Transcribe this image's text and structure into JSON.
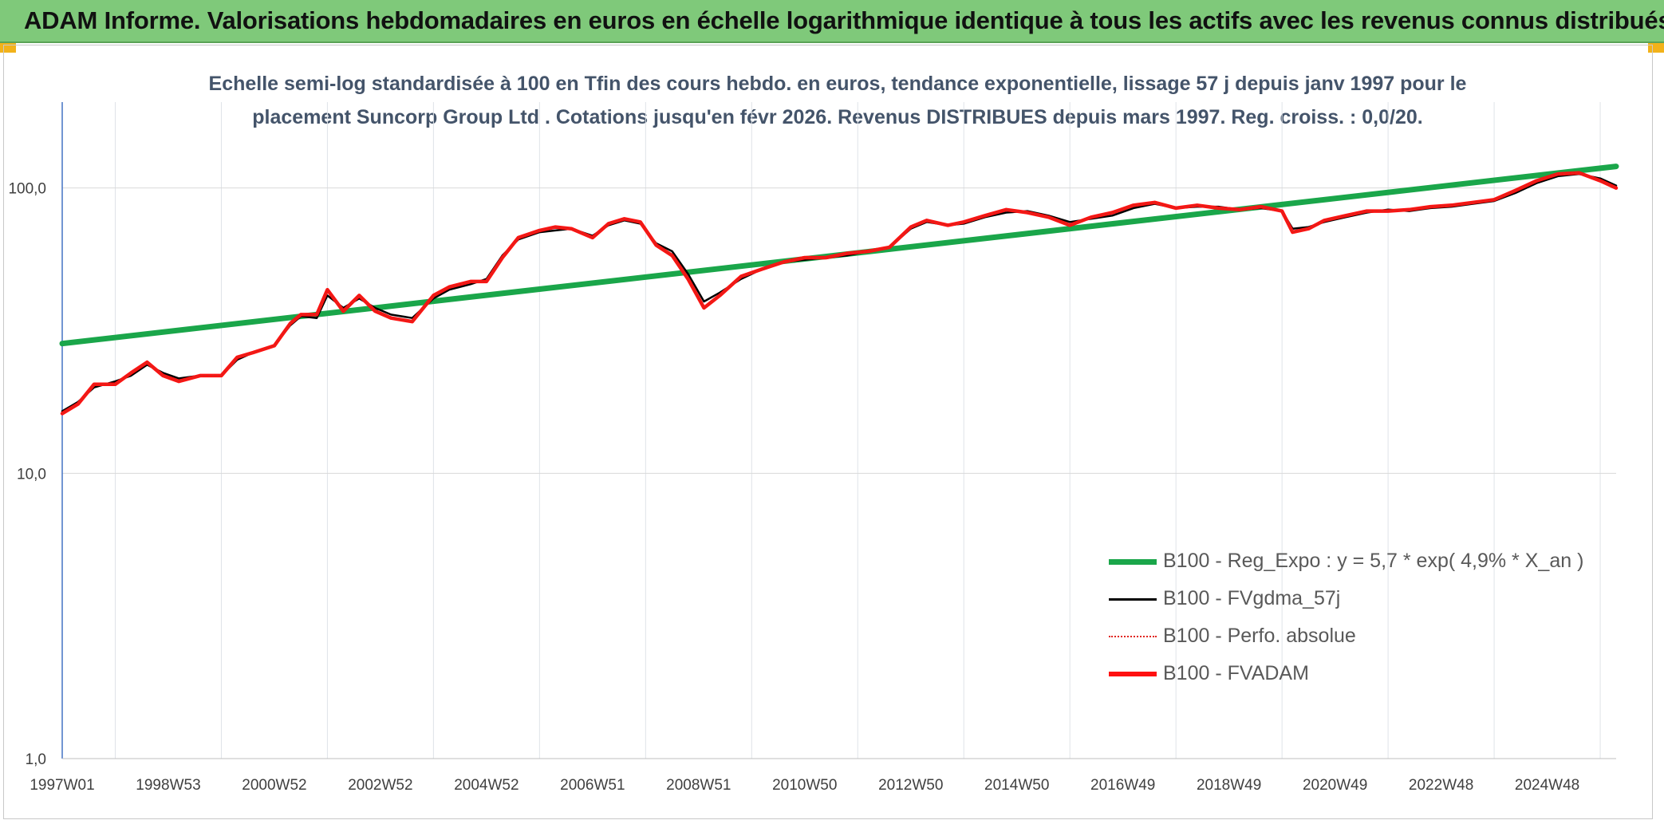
{
  "banner": {
    "title": "ADAM Informe. Valorisations hebdomadaires en euros en échelle logarithmique identique à tous les actifs avec les revenus connus distribués",
    "color": "#7fc97a"
  },
  "chart_data": {
    "type": "line",
    "title_line1": "Echelle semi-log standardisée à 100 en Tfin des cours hebdo. en euros, tendance exponentielle, lissage 57 j depuis janv 1997 pour le",
    "title_line2": "placement Suncorp Group Ltd . Cotations jusqu'en févr 2026. Revenus DISTRIBUES depuis mars 1997. Reg. croiss. : 0,0/20.",
    "y_scale": "log",
    "ylim": [
      1,
      200
    ],
    "xlim": [
      1997.0,
      2026.3
    ],
    "grid": true,
    "legend_position": "bottom-right",
    "y_ticks": [
      {
        "value": 1,
        "label": "1,0"
      },
      {
        "value": 10,
        "label": "10,0"
      },
      {
        "value": 100,
        "label": "100,0"
      }
    ],
    "x_ticks": [
      {
        "value": 1997.0,
        "label": "1997W01"
      },
      {
        "value": 1999.0,
        "label": "1998W53"
      },
      {
        "value": 2001.0,
        "label": "2000W52"
      },
      {
        "value": 2003.0,
        "label": "2002W52"
      },
      {
        "value": 2005.0,
        "label": "2004W52"
      },
      {
        "value": 2007.0,
        "label": "2006W51"
      },
      {
        "value": 2009.0,
        "label": "2008W51"
      },
      {
        "value": 2011.0,
        "label": "2010W50"
      },
      {
        "value": 2013.0,
        "label": "2012W50"
      },
      {
        "value": 2015.0,
        "label": "2014W50"
      },
      {
        "value": 2017.0,
        "label": "2016W49"
      },
      {
        "value": 2019.0,
        "label": "2018W49"
      },
      {
        "value": 2021.0,
        "label": "2020W49"
      },
      {
        "value": 2023.0,
        "label": "2022W48"
      },
      {
        "value": 2025.0,
        "label": "2024W48"
      }
    ],
    "minor_gridlines": [
      1998.0,
      2000.0,
      2002.0,
      2004.0,
      2006.0,
      2008.0,
      2010.0,
      2012.0,
      2014.0,
      2016.0,
      2018.0,
      2020.0,
      2022.0,
      2024.0,
      2026.0
    ],
    "series": [
      {
        "name": "B100 - Reg_Expo : y = 5,7 * exp( 4,9% *  X_an )",
        "color": "#1aa64a",
        "style": "thick",
        "x": [
          1997.0,
          2026.3
        ],
        "y": [
          28.5,
          119
        ]
      },
      {
        "name": "B100 - FVgdma_57j",
        "color": "#000000",
        "style": "thin",
        "x": [
          1997.0,
          1997.3,
          1997.6,
          1998.0,
          1998.3,
          1998.6,
          1998.9,
          1999.2,
          1999.6,
          2000.0,
          2000.3,
          2000.6,
          2001.0,
          2001.3,
          2001.5,
          2001.8,
          2002.0,
          2002.3,
          2002.6,
          2002.9,
          2003.2,
          2003.6,
          2004.0,
          2004.3,
          2004.7,
          2005.0,
          2005.3,
          2005.6,
          2006.0,
          2006.3,
          2006.6,
          2007.0,
          2007.3,
          2007.6,
          2007.9,
          2008.2,
          2008.5,
          2008.8,
          2009.1,
          2009.4,
          2009.8,
          2010.2,
          2010.6,
          2011.0,
          2011.4,
          2011.8,
          2012.2,
          2012.6,
          2013.0,
          2013.3,
          2013.7,
          2014.0,
          2014.4,
          2014.8,
          2015.2,
          2015.6,
          2016.0,
          2016.4,
          2016.8,
          2017.2,
          2017.6,
          2018.0,
          2018.4,
          2018.8,
          2019.2,
          2019.6,
          2020.0,
          2020.2,
          2020.5,
          2020.8,
          2021.2,
          2021.6,
          2022.0,
          2022.4,
          2022.8,
          2023.2,
          2023.6,
          2024.0,
          2024.4,
          2024.8,
          2025.2,
          2025.6,
          2026.0,
          2026.3
        ],
        "y": [
          16.5,
          17.8,
          20,
          21,
          22,
          24,
          22.5,
          21.5,
          22,
          22,
          25,
          26.5,
          28,
          33,
          35.5,
          35,
          42,
          38,
          41,
          38,
          36,
          35,
          41,
          44,
          46,
          48,
          58,
          66,
          70,
          71,
          72,
          68,
          74,
          77,
          75,
          64,
          60,
          50,
          40,
          43,
          48,
          52,
          55,
          56,
          57,
          58,
          60,
          62,
          72,
          76,
          74,
          75,
          79,
          82,
          83,
          80,
          76,
          78,
          80,
          85,
          88,
          85,
          86,
          86,
          84,
          85,
          83,
          72,
          73,
          76,
          79,
          82,
          84,
          83,
          85,
          86,
          88,
          90,
          96,
          104,
          110,
          112,
          108,
          102
        ]
      },
      {
        "name": "B100 - Perfo. absolue",
        "color": "#e0231c",
        "style": "dotted",
        "x": [
          1997.0,
          1997.3,
          1997.6,
          1998.0,
          1998.3,
          1998.6,
          1998.9,
          1999.2,
          1999.6,
          2000.0,
          2000.3,
          2000.6,
          2001.0,
          2001.3,
          2001.5,
          2001.8,
          2002.0,
          2002.3,
          2002.6,
          2002.9,
          2003.2,
          2003.6,
          2004.0,
          2004.3,
          2004.7,
          2005.0,
          2005.3,
          2005.6,
          2006.0,
          2006.3,
          2006.6,
          2007.0,
          2007.3,
          2007.6,
          2007.9,
          2008.2,
          2008.5,
          2008.8,
          2009.1,
          2009.4,
          2009.8,
          2010.2,
          2010.6,
          2011.0,
          2011.4,
          2011.8,
          2012.2,
          2012.6,
          2013.0,
          2013.3,
          2013.7,
          2014.0,
          2014.4,
          2014.8,
          2015.2,
          2015.6,
          2016.0,
          2016.4,
          2016.8,
          2017.2,
          2017.6,
          2018.0,
          2018.4,
          2018.8,
          2019.2,
          2019.6,
          2020.0,
          2020.2,
          2020.5,
          2020.8,
          2021.2,
          2021.6,
          2022.0,
          2022.4,
          2022.8,
          2023.2,
          2023.6,
          2024.0,
          2024.4,
          2024.8,
          2025.2,
          2025.6,
          2026.0,
          2026.3
        ],
        "y": [
          16.2,
          17.5,
          20.5,
          20.5,
          22.5,
          24.5,
          22,
          21,
          22,
          22,
          25.5,
          26.5,
          28,
          33.5,
          36,
          36,
          44,
          37,
          42,
          37,
          35,
          34,
          42,
          45,
          47,
          47,
          57,
          67,
          71,
          73,
          72,
          67,
          75,
          78,
          76,
          63,
          58,
          48,
          38,
          42,
          49,
          52,
          55,
          57,
          57,
          59,
          60,
          62,
          73,
          77,
          74,
          76,
          80,
          84,
          82,
          79,
          74,
          79,
          82,
          87,
          89,
          85,
          87,
          85,
          84,
          86,
          83,
          70,
          72,
          77,
          80,
          83,
          83,
          84,
          86,
          87,
          89,
          91,
          98,
          106,
          112,
          113,
          106,
          100
        ]
      },
      {
        "name": "B100 - FVADAM",
        "color": "#ff1010",
        "style": "medium",
        "x": [
          1997.0,
          1997.3,
          1997.6,
          1998.0,
          1998.3,
          1998.6,
          1998.9,
          1999.2,
          1999.6,
          2000.0,
          2000.3,
          2000.6,
          2001.0,
          2001.3,
          2001.5,
          2001.8,
          2002.0,
          2002.3,
          2002.6,
          2002.9,
          2003.2,
          2003.6,
          2004.0,
          2004.3,
          2004.7,
          2005.0,
          2005.3,
          2005.6,
          2006.0,
          2006.3,
          2006.6,
          2007.0,
          2007.3,
          2007.6,
          2007.9,
          2008.2,
          2008.5,
          2008.8,
          2009.1,
          2009.4,
          2009.8,
          2010.2,
          2010.6,
          2011.0,
          2011.4,
          2011.8,
          2012.2,
          2012.6,
          2013.0,
          2013.3,
          2013.7,
          2014.0,
          2014.4,
          2014.8,
          2015.2,
          2015.6,
          2016.0,
          2016.4,
          2016.8,
          2017.2,
          2017.6,
          2018.0,
          2018.4,
          2018.8,
          2019.2,
          2019.6,
          2020.0,
          2020.2,
          2020.5,
          2020.8,
          2021.2,
          2021.6,
          2022.0,
          2022.4,
          2022.8,
          2023.2,
          2023.6,
          2024.0,
          2024.4,
          2024.8,
          2025.2,
          2025.6,
          2026.0,
          2026.3
        ],
        "y": [
          16.2,
          17.5,
          20.5,
          20.5,
          22.5,
          24.5,
          22,
          21,
          22,
          22,
          25.5,
          26.5,
          28,
          33.5,
          36,
          36,
          44,
          37,
          42,
          37,
          35,
          34,
          42,
          45,
          47,
          47,
          57,
          67,
          71,
          73,
          72,
          67,
          75,
          78,
          76,
          63,
          58,
          48,
          38,
          42,
          49,
          52,
          55,
          57,
          57,
          59,
          60,
          62,
          73,
          77,
          74,
          76,
          80,
          84,
          82,
          79,
          74,
          79,
          82,
          87,
          89,
          85,
          87,
          85,
          84,
          86,
          83,
          70,
          72,
          77,
          80,
          83,
          83,
          84,
          86,
          87,
          89,
          91,
          98,
          106,
          112,
          113,
          106,
          100
        ]
      }
    ]
  }
}
